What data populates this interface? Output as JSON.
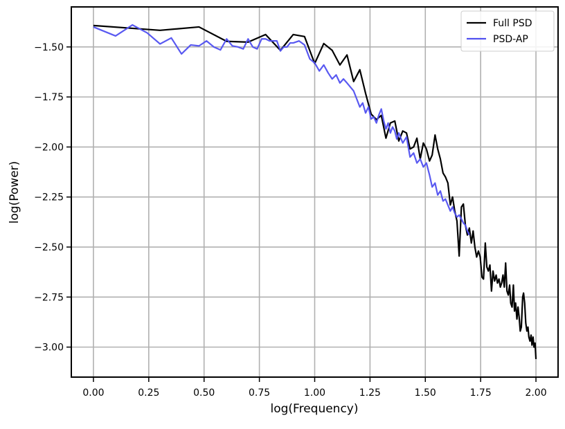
{
  "chart_data": {
    "type": "line",
    "x_label": "log(Frequency)",
    "y_label": "log(Power)",
    "xlim": [
      -0.1,
      2.1
    ],
    "ylim": [
      -3.15,
      -1.3
    ],
    "xticks": [
      {
        "value": 0,
        "label": "0.00"
      },
      {
        "value": 0.25,
        "label": "0.25"
      },
      {
        "value": 0.5,
        "label": "0.50"
      },
      {
        "value": 0.75,
        "label": "0.75"
      },
      {
        "value": 1,
        "label": "1.00"
      },
      {
        "value": 1.25,
        "label": "1.25"
      },
      {
        "value": 1.5,
        "label": "1.50"
      },
      {
        "value": 1.75,
        "label": "1.75"
      },
      {
        "value": 2,
        "label": "2.00"
      }
    ],
    "yticks": [
      {
        "value": -3,
        "label": "−3.00"
      },
      {
        "value": -2.75,
        "label": "−2.75"
      },
      {
        "value": -2.5,
        "label": "−2.50"
      },
      {
        "value": -2.25,
        "label": "−2.25"
      },
      {
        "value": -2,
        "label": "−2.00"
      },
      {
        "value": -1.75,
        "label": "−1.75"
      },
      {
        "value": -1.5,
        "label": "−1.50"
      }
    ],
    "grid": true,
    "legend": "upper-right",
    "series": [
      {
        "name": "Full PSD",
        "color": "#000000",
        "x": [
          0,
          0.301,
          0.477,
          0.602,
          0.699,
          0.778,
          0.845,
          0.903,
          0.954,
          1.0,
          1.041,
          1.079,
          1.114,
          1.146,
          1.176,
          1.204,
          1.23,
          1.255,
          1.279,
          1.301,
          1.322,
          1.342,
          1.362,
          1.38,
          1.398,
          1.415,
          1.431,
          1.447,
          1.462,
          1.477,
          1.491,
          1.505,
          1.519,
          1.531,
          1.544,
          1.556,
          1.568,
          1.58,
          1.591,
          1.602,
          1.613,
          1.623,
          1.633,
          1.643,
          1.653,
          1.663,
          1.672,
          1.681,
          1.69,
          1.699,
          1.708,
          1.716,
          1.724,
          1.732,
          1.74,
          1.748,
          1.756,
          1.763,
          1.771,
          1.778,
          1.785,
          1.792,
          1.799,
          1.806,
          1.813,
          1.82,
          1.826,
          1.833,
          1.839,
          1.845,
          1.851,
          1.857,
          1.863,
          1.869,
          1.875,
          1.881,
          1.886,
          1.892,
          1.898,
          1.903,
          1.908,
          1.914,
          1.919,
          1.924,
          1.929,
          1.934,
          1.94,
          1.944,
          1.949,
          1.954,
          1.959,
          1.964,
          1.968,
          1.973,
          1.978,
          1.982,
          1.987,
          1.991,
          1.996,
          2.0
        ],
        "values": [
          -1.393,
          -1.417,
          -1.4,
          -1.472,
          -1.476,
          -1.438,
          -1.517,
          -1.438,
          -1.448,
          -1.583,
          -1.483,
          -1.517,
          -1.59,
          -1.54,
          -1.673,
          -1.614,
          -1.732,
          -1.835,
          -1.863,
          -1.842,
          -1.956,
          -1.88,
          -1.87,
          -1.97,
          -1.92,
          -1.93,
          -2.01,
          -2.0,
          -1.956,
          -2.06,
          -1.98,
          -2.01,
          -2.07,
          -2.04,
          -1.94,
          -2.01,
          -2.06,
          -2.13,
          -2.15,
          -2.18,
          -2.29,
          -2.25,
          -2.32,
          -2.37,
          -2.545,
          -2.3,
          -2.285,
          -2.39,
          -2.44,
          -2.405,
          -2.48,
          -2.42,
          -2.5,
          -2.55,
          -2.52,
          -2.55,
          -2.65,
          -2.66,
          -2.48,
          -2.6,
          -2.62,
          -2.59,
          -2.72,
          -2.62,
          -2.67,
          -2.64,
          -2.68,
          -2.66,
          -2.7,
          -2.68,
          -2.64,
          -2.7,
          -2.58,
          -2.72,
          -2.74,
          -2.69,
          -2.78,
          -2.8,
          -2.69,
          -2.82,
          -2.78,
          -2.86,
          -2.8,
          -2.85,
          -2.92,
          -2.9,
          -2.75,
          -2.73,
          -2.78,
          -2.88,
          -2.92,
          -2.9,
          -2.95,
          -2.97,
          -2.94,
          -2.99,
          -2.95,
          -3.0,
          -2.98,
          -3.06
        ]
      },
      {
        "name": "PSD-AP",
        "color": "#5050f0",
        "x": [
          0,
          0.1,
          0.176,
          0.243,
          0.301,
          0.352,
          0.398,
          0.44,
          0.477,
          0.511,
          0.544,
          0.574,
          0.602,
          0.628,
          0.653,
          0.677,
          0.699,
          0.72,
          0.74,
          0.76,
          0.778,
          0.796,
          0.813,
          0.829,
          0.845,
          0.86,
          0.875,
          0.889,
          0.903,
          0.929,
          0.954,
          0.978,
          1.0,
          1.021,
          1.041,
          1.061,
          1.079,
          1.097,
          1.114,
          1.13,
          1.146,
          1.161,
          1.176,
          1.19,
          1.204,
          1.217,
          1.23,
          1.243,
          1.255,
          1.267,
          1.279,
          1.29,
          1.301,
          1.312,
          1.322,
          1.332,
          1.342,
          1.352,
          1.362,
          1.371,
          1.38,
          1.398,
          1.415,
          1.431,
          1.447,
          1.462,
          1.477,
          1.491,
          1.505,
          1.519,
          1.531,
          1.544,
          1.556,
          1.568,
          1.58,
          1.591,
          1.602,
          1.613,
          1.623,
          1.633,
          1.643,
          1.653,
          1.663,
          1.672,
          1.681,
          1.69,
          1.699
        ],
        "values": [
          -1.4,
          -1.445,
          -1.39,
          -1.43,
          -1.485,
          -1.455,
          -1.535,
          -1.49,
          -1.495,
          -1.47,
          -1.5,
          -1.515,
          -1.46,
          -1.495,
          -1.5,
          -1.51,
          -1.46,
          -1.5,
          -1.51,
          -1.46,
          -1.46,
          -1.47,
          -1.47,
          -1.47,
          -1.52,
          -1.5,
          -1.5,
          -1.48,
          -1.48,
          -1.47,
          -1.49,
          -1.56,
          -1.58,
          -1.62,
          -1.59,
          -1.63,
          -1.66,
          -1.64,
          -1.68,
          -1.66,
          -1.68,
          -1.7,
          -1.72,
          -1.76,
          -1.8,
          -1.78,
          -1.83,
          -1.8,
          -1.86,
          -1.85,
          -1.88,
          -1.84,
          -1.81,
          -1.87,
          -1.91,
          -1.88,
          -1.93,
          -1.9,
          -1.92,
          -1.96,
          -1.93,
          -1.98,
          -1.95,
          -2.05,
          -2.03,
          -2.08,
          -2.06,
          -2.1,
          -2.08,
          -2.14,
          -2.2,
          -2.18,
          -2.24,
          -2.22,
          -2.27,
          -2.26,
          -2.29,
          -2.32,
          -2.3,
          -2.33,
          -2.35,
          -2.34,
          -2.36,
          -2.38,
          -2.39,
          -2.42,
          -2.44
        ]
      }
    ]
  }
}
